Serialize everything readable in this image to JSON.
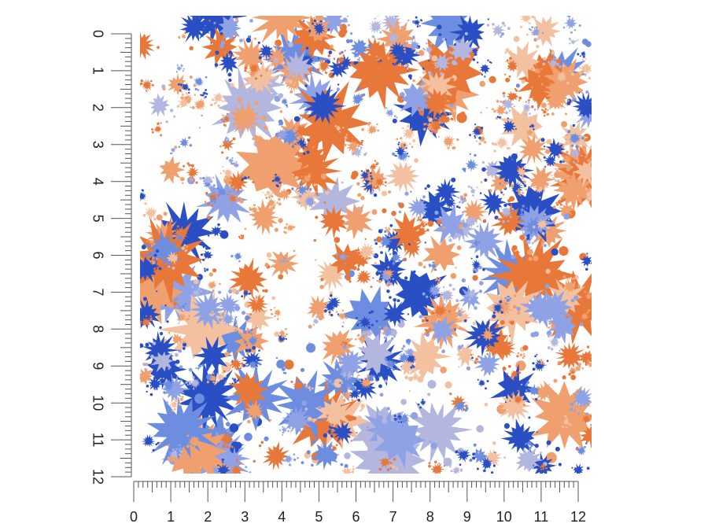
{
  "ruler": {
    "unit_max": 12,
    "subdivisions": 8,
    "left_labels": [
      "0",
      "1",
      "2",
      "3",
      "4",
      "5",
      "6",
      "7",
      "8",
      "9",
      "10",
      "11",
      "12"
    ],
    "bottom_labels": [
      "0",
      "1",
      "2",
      "3",
      "4",
      "5",
      "6",
      "7",
      "8",
      "9",
      "10",
      "11",
      "12"
    ],
    "line_color": "#555555",
    "label_color": "#222222"
  },
  "swatch": {
    "pattern_name": "paint-splatter",
    "colors": {
      "base_white": "#ffffff",
      "orange": "#e8783a",
      "light_orange": "#f0a06e",
      "peach": "#f3c0a0",
      "royal_blue": "#2a4fc4",
      "periwinkle": "#8fa2e6",
      "lavender": "#b3b6de",
      "sky_blue": "#6c8de0"
    }
  }
}
